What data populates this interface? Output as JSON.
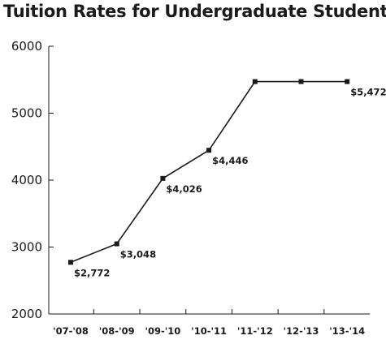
{
  "chart_data": {
    "type": "line",
    "title": "Tuition Rates for Undergraduate Students",
    "xlabel": "",
    "ylabel": "",
    "categories": [
      "'07-'08",
      "'08-'09",
      "'09-'10",
      "'10-'11",
      "'11-'12",
      "'12-'13",
      "'13-'14"
    ],
    "values": [
      2772,
      3048,
      4026,
      4446,
      5472,
      5472,
      5472
    ],
    "data_labels": [
      "$2,772",
      "$3,048",
      "$4,026",
      "$4,446",
      "",
      "",
      "$5,472"
    ],
    "ylim": [
      2000,
      6000
    ],
    "yticks": [
      2000,
      3000,
      4000,
      5000,
      6000
    ],
    "grid": false,
    "legend": "none",
    "line_color": "#1a1a1a"
  }
}
